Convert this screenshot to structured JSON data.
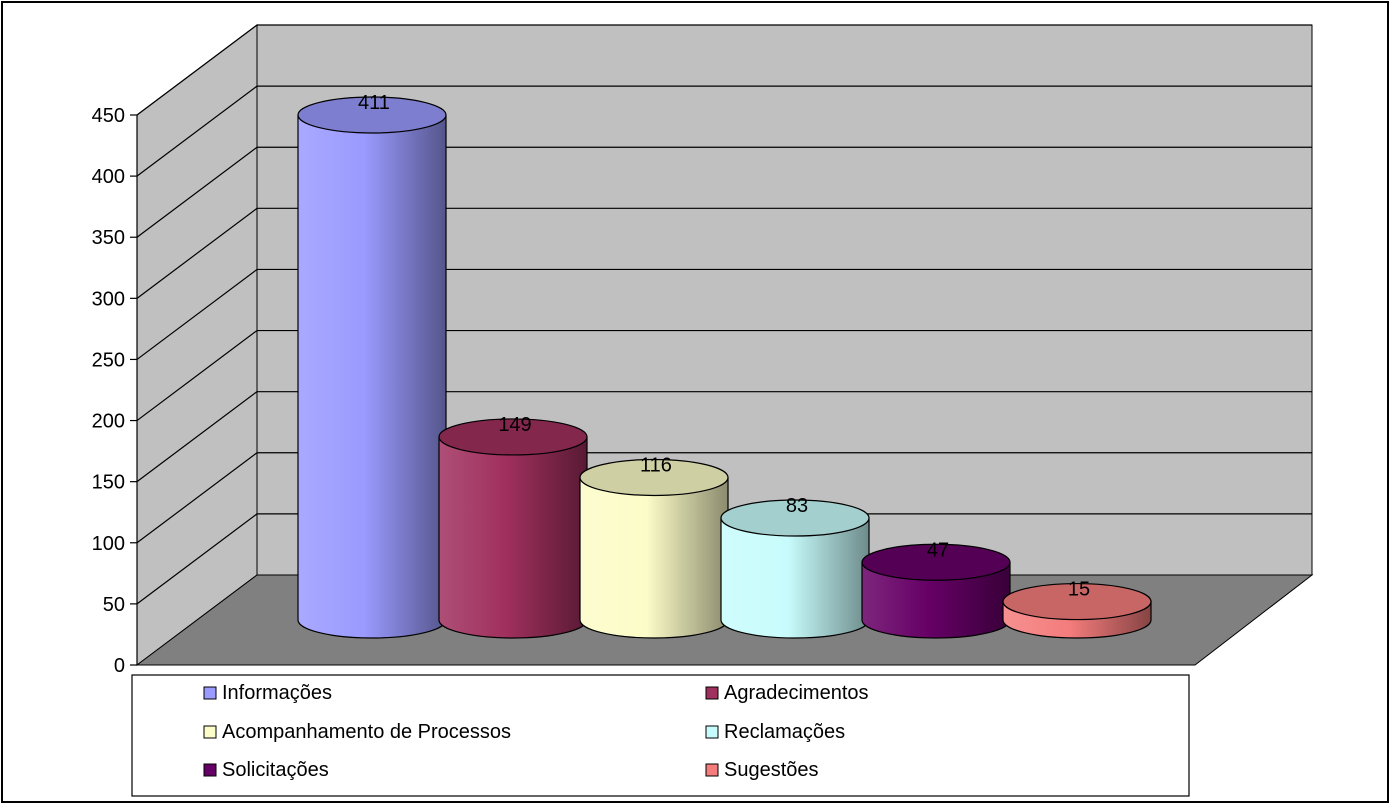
{
  "chart_data": {
    "type": "bar",
    "style": "3d-cylinder",
    "categories": [
      "Informações",
      "Agradecimentos",
      "Acompanhamento de Processos",
      "Reclamações",
      "Solicitações",
      "Sugestões"
    ],
    "values": [
      411,
      149,
      116,
      83,
      47,
      15
    ],
    "colors": [
      "#9a9aff",
      "#a0305e",
      "#fcfcc8",
      "#c8fcfc",
      "#660066",
      "#f47c7c"
    ],
    "y_ticks": [
      "0",
      "50",
      "100",
      "150",
      "200",
      "250",
      "300",
      "350",
      "400",
      "450"
    ],
    "ylim": [
      0,
      450
    ],
    "grid": true,
    "wall_color": "#c0c0c0",
    "floor_color": "#808080",
    "legend_position": "bottom",
    "legend": [
      "Informações",
      "Agradecimentos",
      "Acompanhamento de Processos",
      "Reclamações",
      "Solicitações",
      "Sugestões"
    ]
  }
}
